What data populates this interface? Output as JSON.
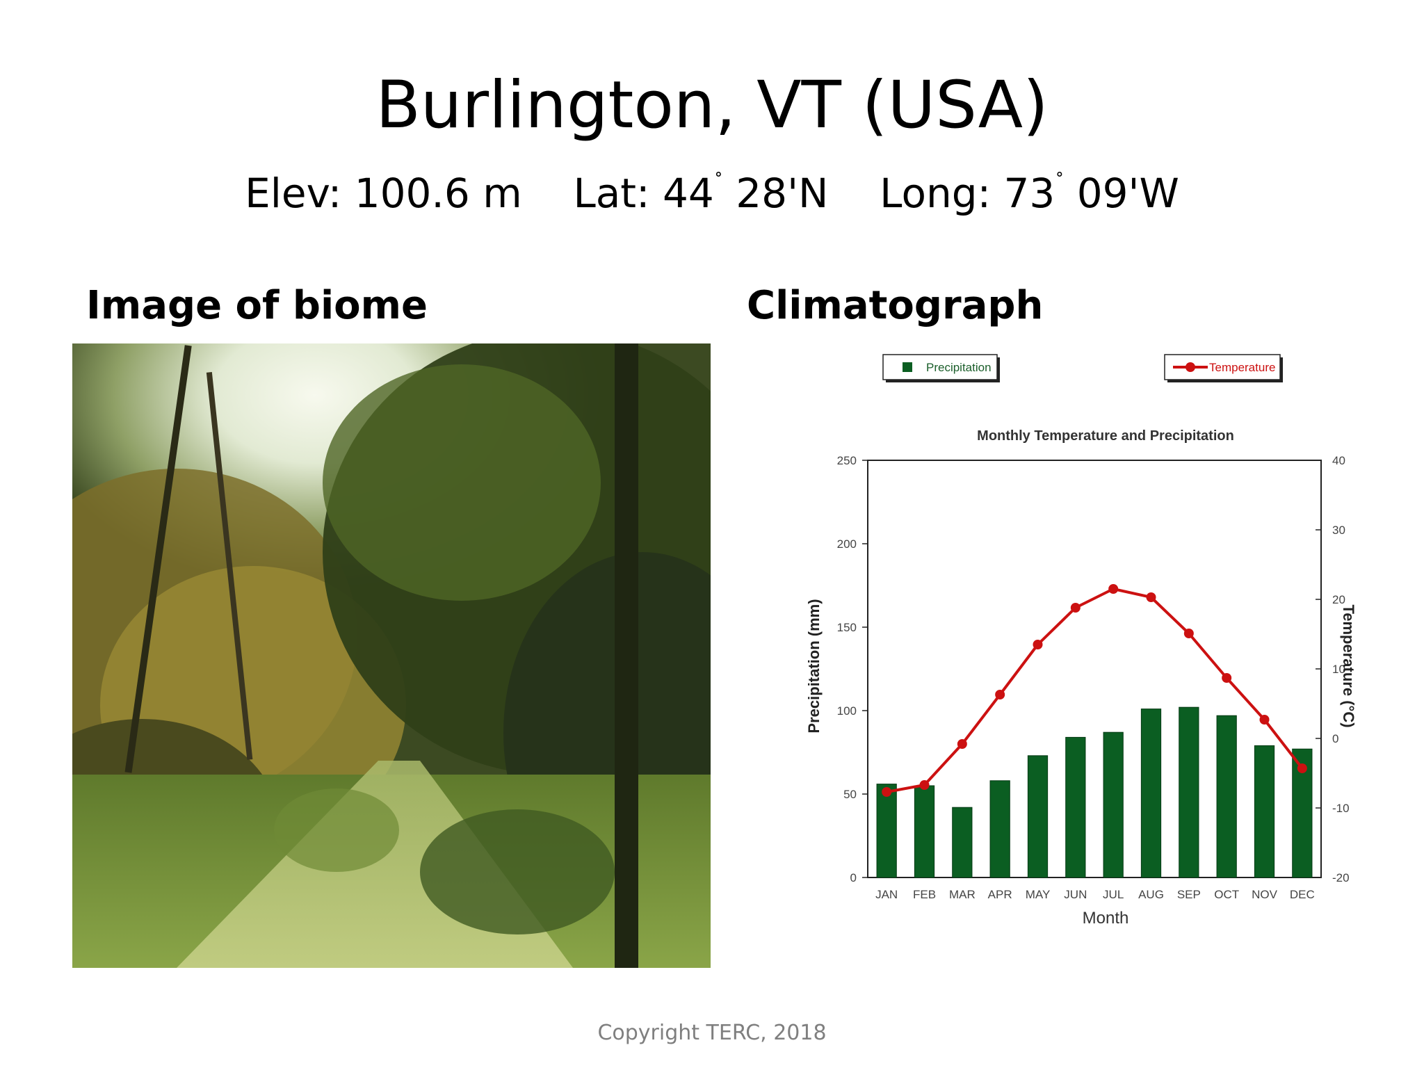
{
  "slide": {
    "title": "Burlington, VT  (USA)",
    "location": {
      "elev": "Elev: 100.6 m",
      "lat_prefix": "Lat: 44",
      "lat_suffix": " 28'N",
      "long_prefix": "Long: 73",
      "long_suffix": " 09'W",
      "degree_mark": "˚"
    },
    "image_heading": "Image of biome",
    "chart_heading": "Climatograph",
    "copyright": "Copyright TERC, 2018"
  },
  "colors": {
    "precipitation_bar": "#0b5e22",
    "temperature_line": "#cc1111"
  },
  "chart_data": {
    "type": "bar",
    "title": "Monthly Temperature and Precipitation",
    "xlabel": "Month",
    "categories": [
      "JAN",
      "FEB",
      "MAR",
      "APR",
      "MAY",
      "JUN",
      "JUL",
      "AUG",
      "SEP",
      "OCT",
      "NOV",
      "DEC"
    ],
    "y_left": {
      "label": "Precipitation (mm)",
      "range": [
        0,
        250
      ],
      "ticks": [
        0,
        50,
        100,
        150,
        200,
        250
      ]
    },
    "y_right": {
      "label": "Temperature (°C)",
      "range": [
        -20,
        40
      ],
      "ticks": [
        -20,
        -10,
        0,
        10,
        20,
        30,
        40
      ]
    },
    "series": [
      {
        "name": "Precipitation",
        "kind": "bar",
        "axis": "left",
        "values": [
          56,
          55,
          42,
          58,
          73,
          84,
          87,
          101,
          102,
          97,
          79,
          77
        ]
      },
      {
        "name": "Temperature",
        "kind": "line",
        "axis": "right",
        "values": [
          -7.7,
          -6.7,
          -0.8,
          6.3,
          13.5,
          18.8,
          21.5,
          20.3,
          15.1,
          8.7,
          2.7,
          -4.3
        ]
      }
    ],
    "legend": "top"
  }
}
